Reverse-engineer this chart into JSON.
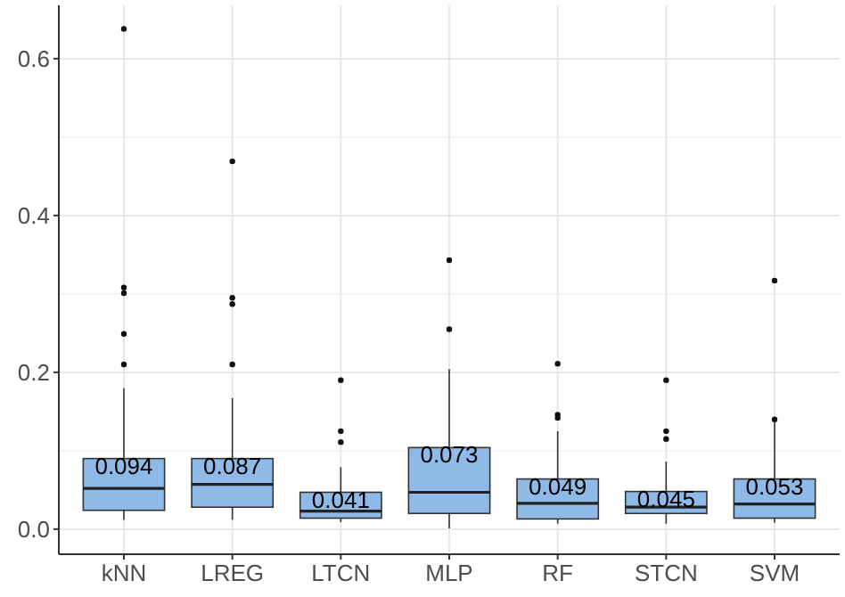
{
  "chart_data": {
    "type": "box",
    "categories": [
      "kNN",
      "LREG",
      "LTCN",
      "MLP",
      "RF",
      "STCN",
      "SVM"
    ],
    "color": "#8fb9e6",
    "ylim": [
      -0.032,
      0.668
    ],
    "yticks": [
      {
        "value": 0,
        "label": "0.0"
      },
      {
        "value": 0.2,
        "label": "0.2"
      },
      {
        "value": 0.4,
        "label": "0.4"
      },
      {
        "value": 0.6,
        "label": "0.6"
      }
    ],
    "grid": true,
    "boxes": [
      {
        "low": 0.012,
        "q1": 0.024,
        "median": 0.052,
        "q3": 0.09,
        "high": 0.18,
        "outliers": [
          0.638,
          0.308,
          0.301,
          0.249,
          0.21
        ]
      },
      {
        "low": 0.012,
        "q1": 0.028,
        "median": 0.057,
        "q3": 0.09,
        "high": 0.167,
        "outliers": [
          0.469,
          0.295,
          0.287,
          0.21
        ]
      },
      {
        "low": 0.009,
        "q1": 0.014,
        "median": 0.023,
        "q3": 0.047,
        "high": 0.079,
        "outliers": [
          0.19,
          0.125,
          0.111
        ]
      },
      {
        "low": 0.001,
        "q1": 0.02,
        "median": 0.047,
        "q3": 0.104,
        "high": 0.204,
        "outliers": [
          0.343,
          0.255
        ]
      },
      {
        "low": 0.007,
        "q1": 0.013,
        "median": 0.033,
        "q3": 0.064,
        "high": 0.125,
        "outliers": [
          0.211,
          0.146,
          0.142
        ]
      },
      {
        "low": 0.007,
        "q1": 0.02,
        "median": 0.028,
        "q3": 0.048,
        "high": 0.086,
        "outliers": [
          0.19,
          0.125,
          0.115
        ]
      },
      {
        "low": 0.008,
        "q1": 0.014,
        "median": 0.032,
        "q3": 0.064,
        "high": 0.139,
        "outliers": [
          0.317,
          0.14
        ]
      }
    ],
    "annotations": [
      "0.094",
      "0.087",
      "0.041",
      "0.073",
      "0.049",
      "0.045",
      "0.053"
    ]
  }
}
